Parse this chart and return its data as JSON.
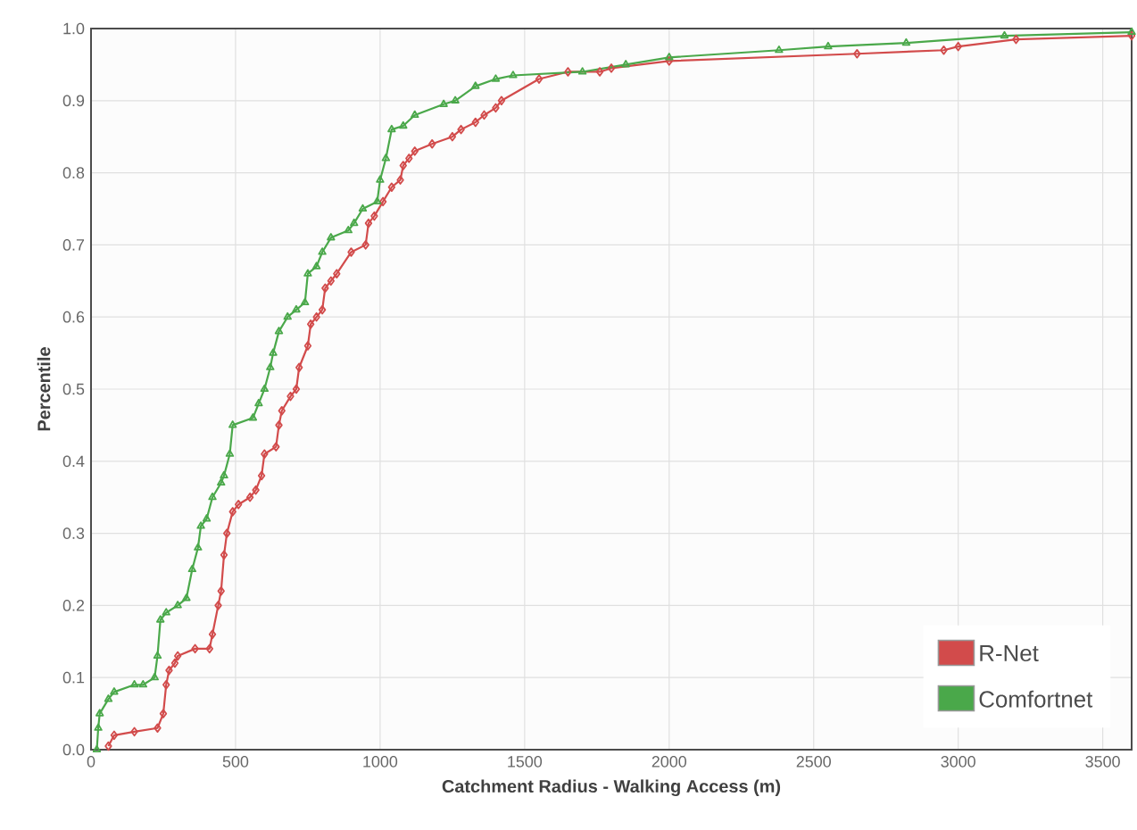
{
  "chart_data": {
    "type": "line",
    "xlabel": "Catchment Radius - Walking Access (m)",
    "ylabel": "Percentile",
    "xlim": [
      0,
      3600
    ],
    "ylim": [
      0,
      1
    ],
    "xticks": [
      0,
      500,
      1000,
      1500,
      2000,
      2500,
      3000,
      3500
    ],
    "yticks": [
      {
        "value": 0,
        "label": "0.0"
      },
      0.1,
      0.2,
      0.3,
      0.4,
      0.5,
      0.6,
      0.7,
      0.8,
      0.9,
      {
        "value": 1,
        "label": "1.0"
      }
    ],
    "grid": true,
    "legend": "bottom right",
    "line_style": "solid",
    "series": [
      {
        "name": "R-Net",
        "color": "#d24b4b",
        "marker": "diamond",
        "x": [
          60,
          80,
          150,
          230,
          250,
          260,
          270,
          290,
          300,
          360,
          410,
          420,
          440,
          450,
          460,
          470,
          490,
          510,
          550,
          570,
          590,
          600,
          640,
          650,
          660,
          690,
          710,
          720,
          750,
          760,
          780,
          800,
          810,
          830,
          850,
          900,
          950,
          960,
          980,
          1010,
          1040,
          1070,
          1080,
          1100,
          1120,
          1180,
          1250,
          1280,
          1330,
          1360,
          1400,
          1420,
          1550,
          1650,
          1760,
          1800,
          2000,
          2650,
          2950,
          3000,
          3200,
          3600
        ],
        "values": [
          0.005,
          0.02,
          0.025,
          0.03,
          0.05,
          0.09,
          0.11,
          0.12,
          0.13,
          0.14,
          0.14,
          0.16,
          0.2,
          0.22,
          0.27,
          0.3,
          0.33,
          0.34,
          0.35,
          0.36,
          0.38,
          0.41,
          0.42,
          0.45,
          0.47,
          0.49,
          0.5,
          0.53,
          0.56,
          0.59,
          0.6,
          0.61,
          0.64,
          0.65,
          0.66,
          0.69,
          0.7,
          0.73,
          0.74,
          0.76,
          0.78,
          0.79,
          0.81,
          0.82,
          0.83,
          0.84,
          0.85,
          0.86,
          0.87,
          0.88,
          0.89,
          0.9,
          0.93,
          0.94,
          0.94,
          0.945,
          0.955,
          0.965,
          0.97,
          0.975,
          0.985,
          0.99
        ]
      },
      {
        "name": "Comfortnet",
        "color": "#4aa84a",
        "marker": "triangle",
        "x": [
          20,
          25,
          30,
          60,
          80,
          150,
          180,
          220,
          230,
          240,
          260,
          300,
          330,
          350,
          370,
          380,
          400,
          420,
          450,
          460,
          480,
          490,
          560,
          580,
          600,
          620,
          630,
          650,
          680,
          710,
          740,
          750,
          780,
          800,
          830,
          890,
          910,
          940,
          990,
          1000,
          1020,
          1040,
          1080,
          1120,
          1220,
          1260,
          1330,
          1400,
          1460,
          1700,
          1850,
          2000,
          2380,
          2550,
          2820,
          3160,
          3600
        ],
        "values": [
          0.0,
          0.03,
          0.05,
          0.07,
          0.08,
          0.09,
          0.09,
          0.1,
          0.13,
          0.18,
          0.19,
          0.2,
          0.21,
          0.25,
          0.28,
          0.31,
          0.32,
          0.35,
          0.37,
          0.38,
          0.41,
          0.45,
          0.46,
          0.48,
          0.5,
          0.53,
          0.55,
          0.58,
          0.6,
          0.61,
          0.62,
          0.66,
          0.67,
          0.69,
          0.71,
          0.72,
          0.73,
          0.75,
          0.76,
          0.79,
          0.82,
          0.86,
          0.865,
          0.88,
          0.895,
          0.9,
          0.92,
          0.93,
          0.935,
          0.94,
          0.95,
          0.96,
          0.97,
          0.975,
          0.98,
          0.99,
          0.995
        ]
      }
    ]
  }
}
